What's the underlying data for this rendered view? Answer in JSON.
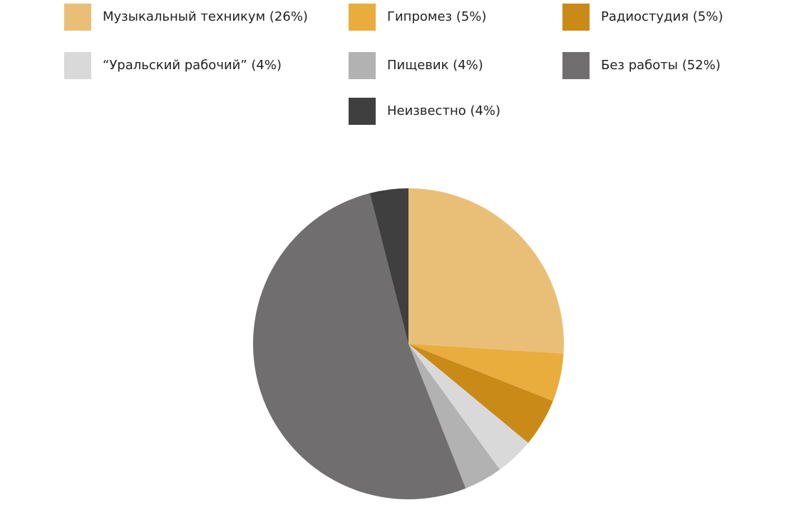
{
  "chart_data": {
    "type": "pie",
    "title": "",
    "legend_position": "top",
    "slices": [
      {
        "label": "Музыкальный техникум (26%)",
        "value": 26,
        "color": "#E9BF78"
      },
      {
        "label": "Гипромез (5%)",
        "value": 5,
        "color": "#E9AD3E"
      },
      {
        "label": "Радиостудия (5%)",
        "value": 5,
        "color": "#C98A18"
      },
      {
        "label": "“Уральский рабочий” (4%)",
        "value": 4,
        "color": "#D9D9D9"
      },
      {
        "label": "Пищевик (4%)",
        "value": 4,
        "color": "#B2B2B2"
      },
      {
        "label": "Без работы (52%)",
        "value": 52,
        "color": "#706E6E"
      },
      {
        "label": "Неизвестно (4%)",
        "value": 4,
        "color": "#3F3F3F"
      }
    ]
  }
}
